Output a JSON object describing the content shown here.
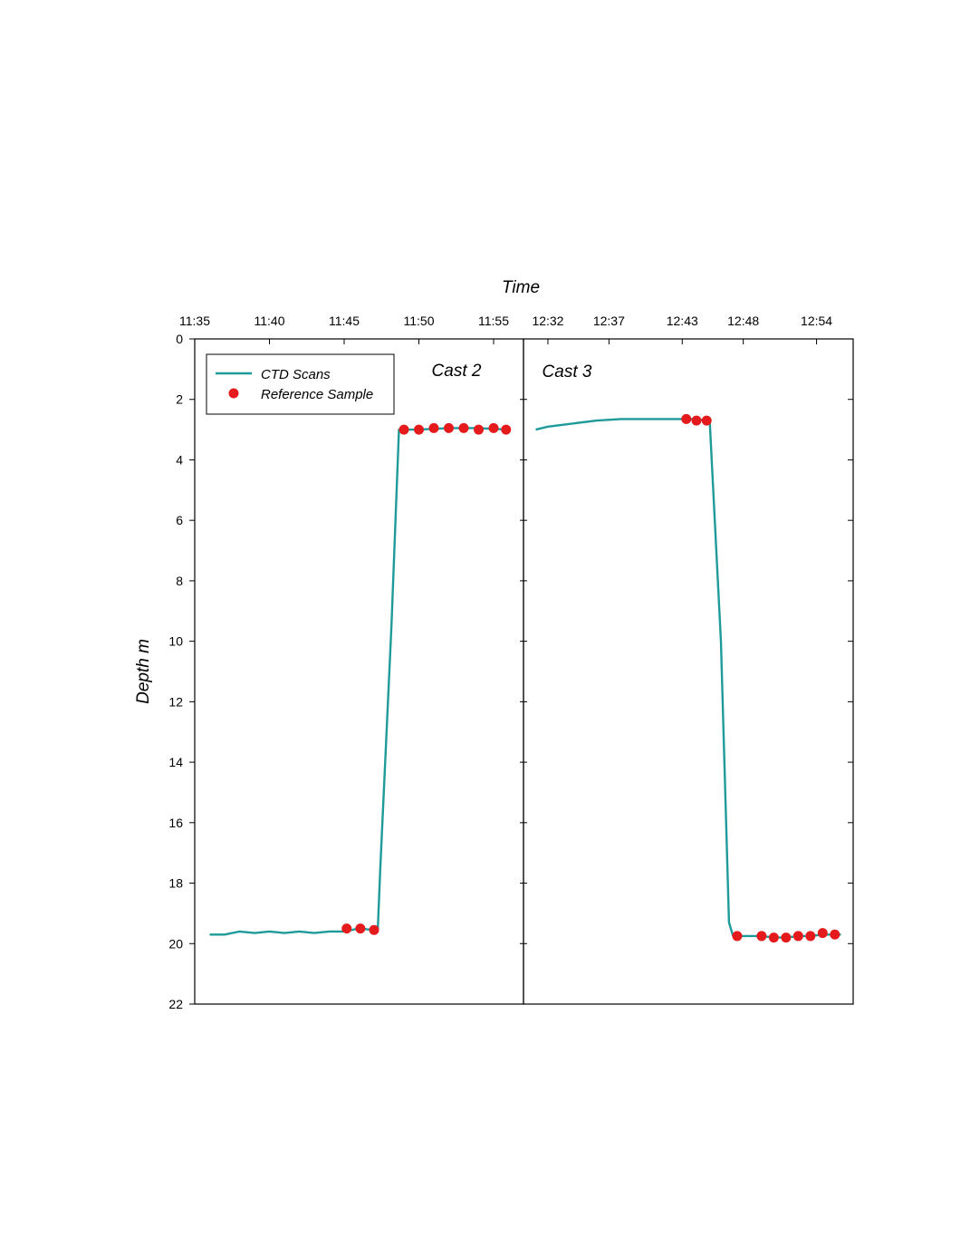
{
  "chart_data": {
    "type": "line",
    "xlabel": "Time",
    "ylabel": "Depth m",
    "ylim": [
      0,
      22
    ],
    "y_reversed": true,
    "y_ticks": [
      0,
      2,
      4,
      6,
      8,
      10,
      12,
      14,
      16,
      18,
      20,
      22
    ],
    "grid": false,
    "legend": {
      "placement": "top-left",
      "entries": [
        "CTD Scans",
        "Reference Sample"
      ]
    },
    "colors": {
      "ctd": "#1f9a9a",
      "reference": "#e41a1c"
    },
    "panels": [
      {
        "label": "Cast 2",
        "xlim": [
          "11:35",
          "11:57"
        ],
        "x_ticks": [
          "11:35",
          "11:40",
          "11:45",
          "11:50",
          "11:55"
        ],
        "series": [
          {
            "name": "CTD Scans",
            "style": "line",
            "points": [
              [
                "11:36",
                19.7
              ],
              [
                "11:37",
                19.7
              ],
              [
                "11:38",
                19.6
              ],
              [
                "11:39",
                19.65
              ],
              [
                "11:40",
                19.6
              ],
              [
                "11:41",
                19.65
              ],
              [
                "11:42",
                19.6
              ],
              [
                "11:43",
                19.65
              ],
              [
                "11:44",
                19.6
              ],
              [
                "11:45",
                19.6
              ],
              [
                "11:46",
                19.5
              ],
              [
                "11:47",
                19.55
              ],
              [
                "11:47:15",
                19.55
              ],
              [
                "11:47:25",
                17.5
              ],
              [
                "11:48:10",
                9.5
              ],
              [
                "11:48:40",
                3.0
              ],
              [
                "11:50",
                3.0
              ],
              [
                "11:52",
                2.95
              ],
              [
                "11:54",
                2.95
              ],
              [
                "11:56",
                3.0
              ]
            ]
          },
          {
            "name": "Reference Sample",
            "style": "points",
            "points": [
              [
                "11:45:10",
                19.5
              ],
              [
                "11:46:05",
                19.5
              ],
              [
                "11:47:00",
                19.55
              ],
              [
                "11:49:00",
                3.0
              ],
              [
                "11:50:00",
                3.0
              ],
              [
                "11:51:00",
                2.95
              ],
              [
                "11:52:00",
                2.95
              ],
              [
                "11:53:00",
                2.95
              ],
              [
                "11:54:00",
                3.0
              ],
              [
                "11:55:00",
                2.95
              ],
              [
                "11:55:50",
                3.0
              ]
            ]
          }
        ]
      },
      {
        "label": "Cast 3",
        "xlim": [
          "12:30",
          "12:57"
        ],
        "x_ticks": [
          "12:32",
          "12:37",
          "12:43",
          "12:48",
          "12:54"
        ],
        "series": [
          {
            "name": "CTD Scans",
            "style": "line",
            "points": [
              [
                "12:31",
                3.0
              ],
              [
                "12:32",
                2.9
              ],
              [
                "12:34",
                2.8
              ],
              [
                "12:36",
                2.7
              ],
              [
                "12:38",
                2.65
              ],
              [
                "12:40",
                2.65
              ],
              [
                "12:42",
                2.65
              ],
              [
                "12:44",
                2.65
              ],
              [
                "12:45",
                2.7
              ],
              [
                "12:45:15",
                2.7
              ],
              [
                "12:46:10",
                10.0
              ],
              [
                "12:46:50",
                19.3
              ],
              [
                "12:47:10",
                19.75
              ],
              [
                "12:49",
                19.75
              ],
              [
                "12:51",
                19.8
              ],
              [
                "12:53",
                19.75
              ],
              [
                "12:55",
                19.7
              ],
              [
                "12:56",
                19.7
              ]
            ]
          },
          {
            "name": "Reference Sample",
            "style": "points",
            "points": [
              [
                "12:43:20",
                2.65
              ],
              [
                "12:44:10",
                2.7
              ],
              [
                "12:45:00",
                2.7
              ],
              [
                "12:47:30",
                19.75
              ],
              [
                "12:49:30",
                19.75
              ],
              [
                "12:50:30",
                19.8
              ],
              [
                "12:51:30",
                19.8
              ],
              [
                "12:52:30",
                19.75
              ],
              [
                "12:53:30",
                19.75
              ],
              [
                "12:54:30",
                19.65
              ],
              [
                "12:55:30",
                19.7
              ]
            ]
          }
        ]
      }
    ]
  }
}
